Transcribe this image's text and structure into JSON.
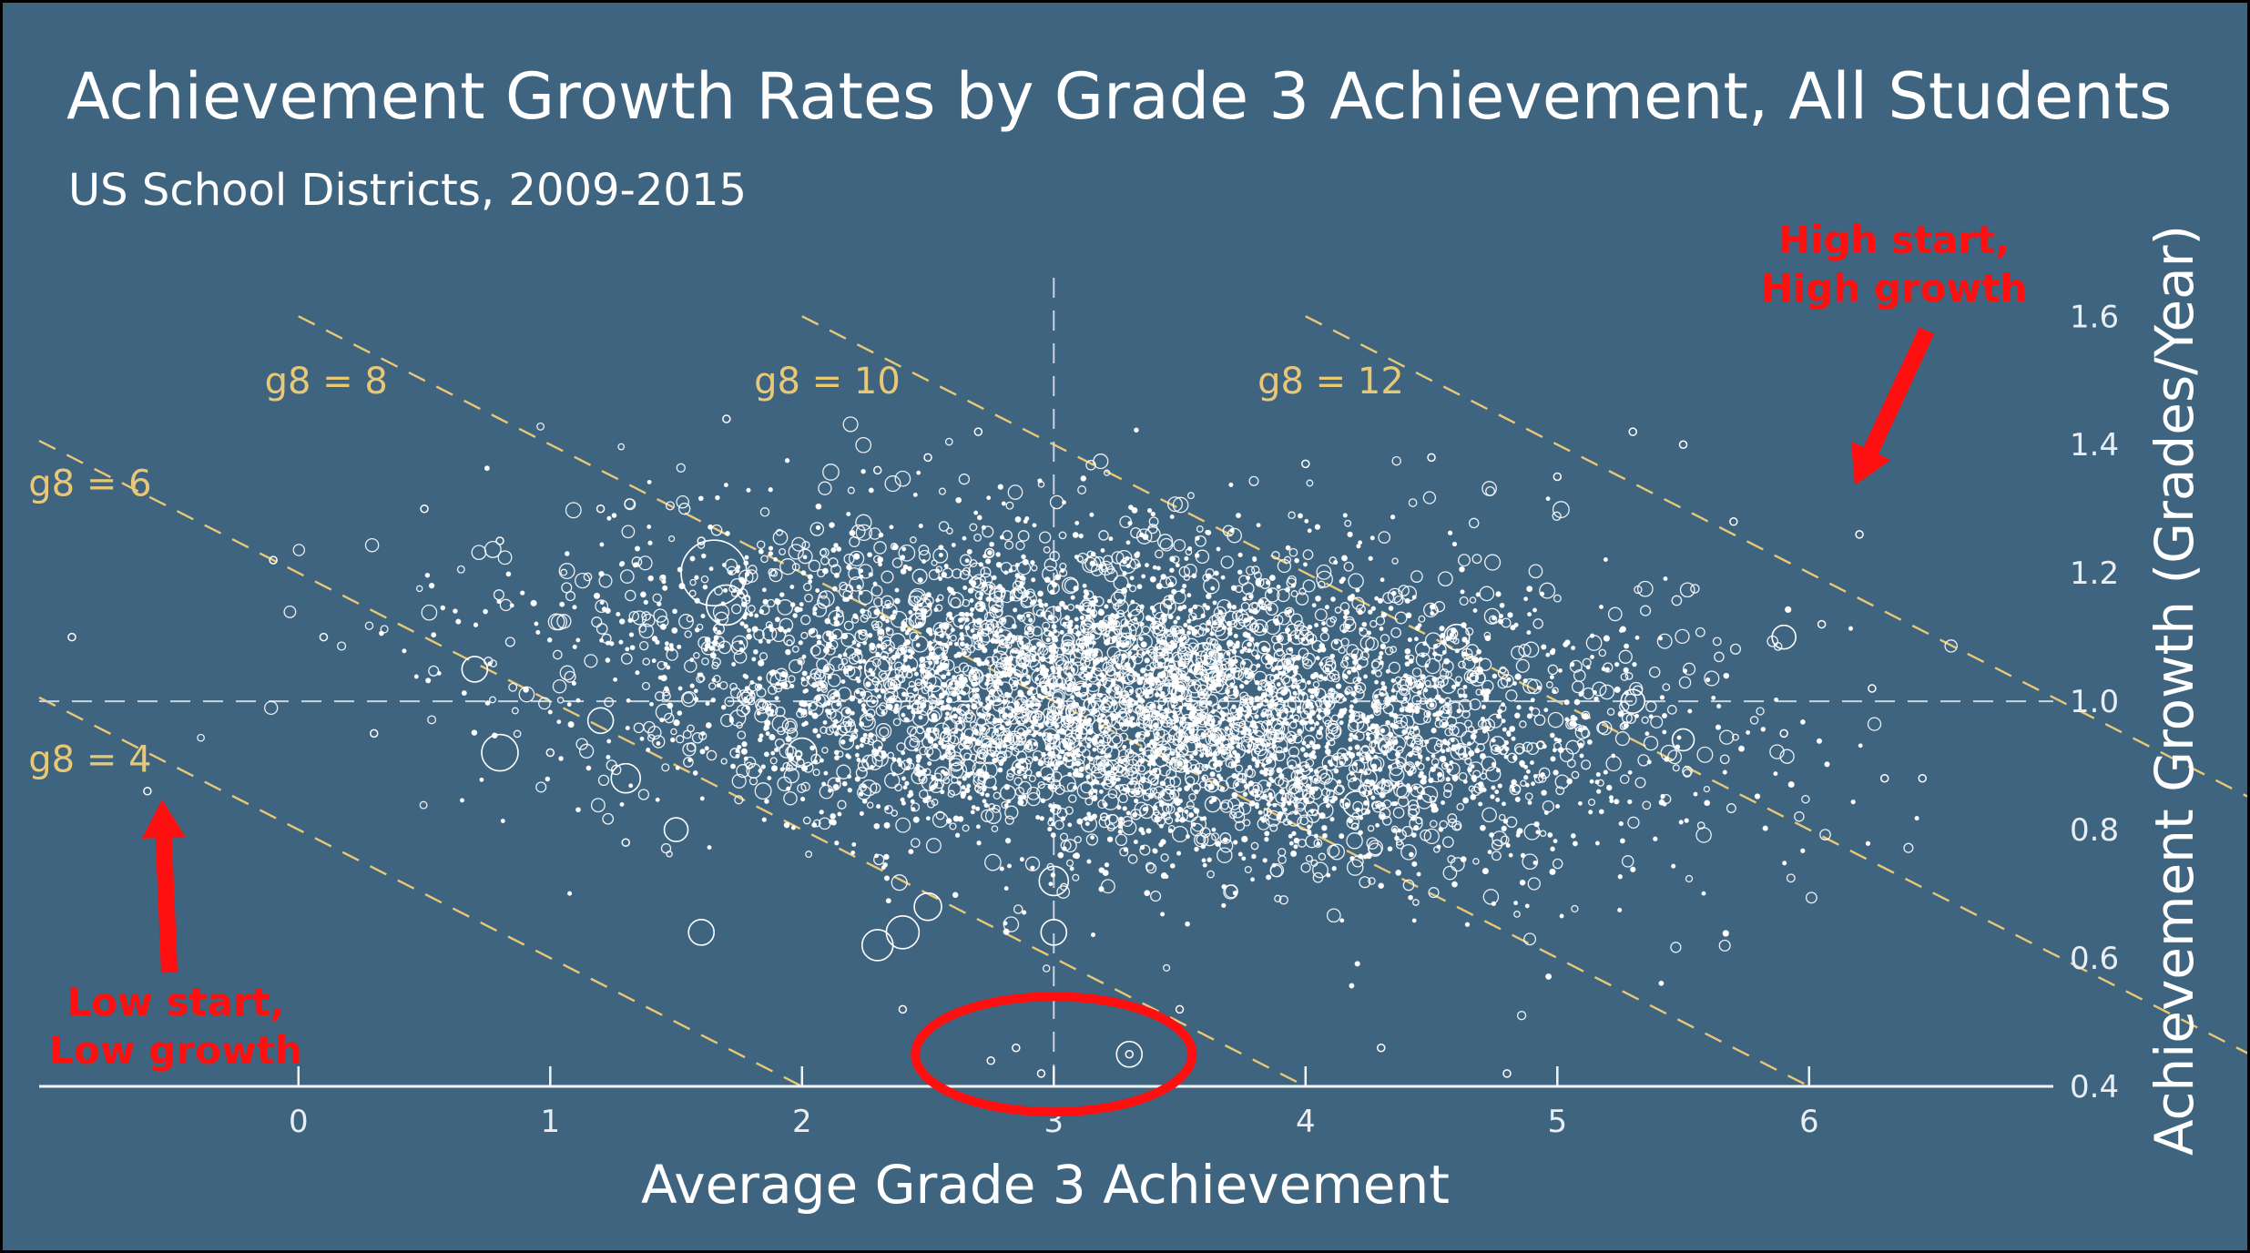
{
  "chart_data": {
    "type": "scatter",
    "title": "Achievement Growth Rates by Grade 3 Achievement, All Students",
    "subtitle": "US School Districts, 2009-2015",
    "xlabel": "Average Grade 3 Achievement",
    "ylabel": "Achievement Growth (Grades/Year)",
    "xlim": [
      -1.03,
      6.97
    ],
    "ylim": [
      0.4,
      1.66
    ],
    "x_ticks": [
      0,
      1,
      2,
      3,
      4,
      5,
      6
    ],
    "y_ticks": [
      0.4,
      0.6,
      0.8,
      1.0,
      1.2,
      1.4,
      1.6
    ],
    "x_tick_labels": [
      "0",
      "1",
      "2",
      "3",
      "4",
      "5",
      "6"
    ],
    "y_tick_labels": [
      "0.4",
      "0.6",
      "0.8",
      "1.0",
      "1.2",
      "1.4",
      "1.6"
    ],
    "reference_lines": {
      "x": 3,
      "y": 1.0
    },
    "guide_lines": [
      {
        "label": "g8 = 4",
        "g8": 4
      },
      {
        "label": "g8 = 6",
        "g8": 6
      },
      {
        "label": "g8 = 8",
        "g8": 8
      },
      {
        "label": "g8 = 10",
        "g8": 10
      },
      {
        "label": "g8 = 12",
        "g8": 12
      }
    ],
    "cloud": {
      "center": [
        3.3,
        1.0
      ],
      "x_sd": 1.0,
      "y_sd": 0.13,
      "correlation": -0.25,
      "count": 5200
    },
    "points": [
      [
        -0.9,
        1.1
      ],
      [
        -0.6,
        0.86
      ],
      [
        -0.1,
        1.22
      ],
      [
        0.1,
        1.1
      ],
      [
        0.3,
        0.95
      ],
      [
        0.5,
        1.3
      ],
      [
        0.8,
        1.25
      ],
      [
        1.0,
        0.92
      ],
      [
        1.2,
        1.3
      ],
      [
        1.3,
        0.78
      ],
      [
        1.6,
        1.25
      ],
      [
        1.7,
        1.44
      ],
      [
        2.3,
        1.36
      ],
      [
        2.4,
        0.52
      ],
      [
        2.5,
        1.38
      ],
      [
        2.7,
        1.42
      ],
      [
        2.75,
        0.44
      ],
      [
        2.85,
        0.46
      ],
      [
        2.95,
        0.42
      ],
      [
        3.3,
        0.45
      ],
      [
        3.2,
        0.82
      ],
      [
        3.5,
        0.52
      ],
      [
        4.0,
        1.37
      ],
      [
        4.3,
        0.46
      ],
      [
        4.5,
        1.38
      ],
      [
        4.8,
        0.42
      ],
      [
        5.0,
        1.35
      ],
      [
        5.3,
        1.42
      ],
      [
        5.5,
        1.4
      ],
      [
        5.7,
        1.28
      ],
      [
        5.9,
        0.95
      ],
      [
        6.05,
        1.12
      ],
      [
        6.2,
        1.26
      ],
      [
        6.25,
        1.02
      ],
      [
        6.3,
        0.88
      ],
      [
        6.45,
        0.88
      ]
    ],
    "bubbles": [
      {
        "x": 1.65,
        "y": 1.2,
        "size": 3.6
      },
      {
        "x": 1.7,
        "y": 1.15,
        "size": 2.2
      },
      {
        "x": 0.8,
        "y": 0.92,
        "size": 2.0
      },
      {
        "x": 0.7,
        "y": 1.05,
        "size": 1.4
      },
      {
        "x": 1.2,
        "y": 0.97,
        "size": 1.4
      },
      {
        "x": 1.3,
        "y": 0.88,
        "size": 1.6
      },
      {
        "x": 1.5,
        "y": 0.8,
        "size": 1.3
      },
      {
        "x": 1.6,
        "y": 0.64,
        "size": 1.4
      },
      {
        "x": 2.4,
        "y": 0.64,
        "size": 1.8
      },
      {
        "x": 2.3,
        "y": 0.62,
        "size": 1.7
      },
      {
        "x": 2.5,
        "y": 0.68,
        "size": 1.5
      },
      {
        "x": 2.0,
        "y": 0.92,
        "size": 1.6
      },
      {
        "x": 2.3,
        "y": 1.05,
        "size": 1.4
      },
      {
        "x": 3.0,
        "y": 0.64,
        "size": 1.4
      },
      {
        "x": 3.3,
        "y": 0.45,
        "size": 1.4
      },
      {
        "x": 3.0,
        "y": 0.72,
        "size": 1.6
      },
      {
        "x": 3.6,
        "y": 1.07,
        "size": 1.5
      },
      {
        "x": 4.2,
        "y": 0.84,
        "size": 1.4
      },
      {
        "x": 4.6,
        "y": 1.1,
        "size": 1.4
      },
      {
        "x": 5.3,
        "y": 1.0,
        "size": 1.3
      },
      {
        "x": 5.9,
        "y": 1.1,
        "size": 1.3
      },
      {
        "x": 5.5,
        "y": 0.94,
        "size": 1.2
      }
    ],
    "highlight_ellipse": {
      "center": [
        3.0,
        0.45
      ],
      "rx": 0.55,
      "ry": 0.09
    },
    "annotations": [
      {
        "label": "High start,\nHigh growth",
        "lines": [
          "High start,",
          "High growth"
        ]
      },
      {
        "label": "Low start,\nLow growth",
        "lines": [
          "Low start,",
          "Low growth"
        ]
      }
    ],
    "grid": false,
    "legend": "none",
    "colors": {
      "background": "#3f6480",
      "points": "#ffffff",
      "guide_lines": "#e8c877",
      "reference_lines": "#c9d4dd",
      "annotation": "#ff1010"
    }
  }
}
